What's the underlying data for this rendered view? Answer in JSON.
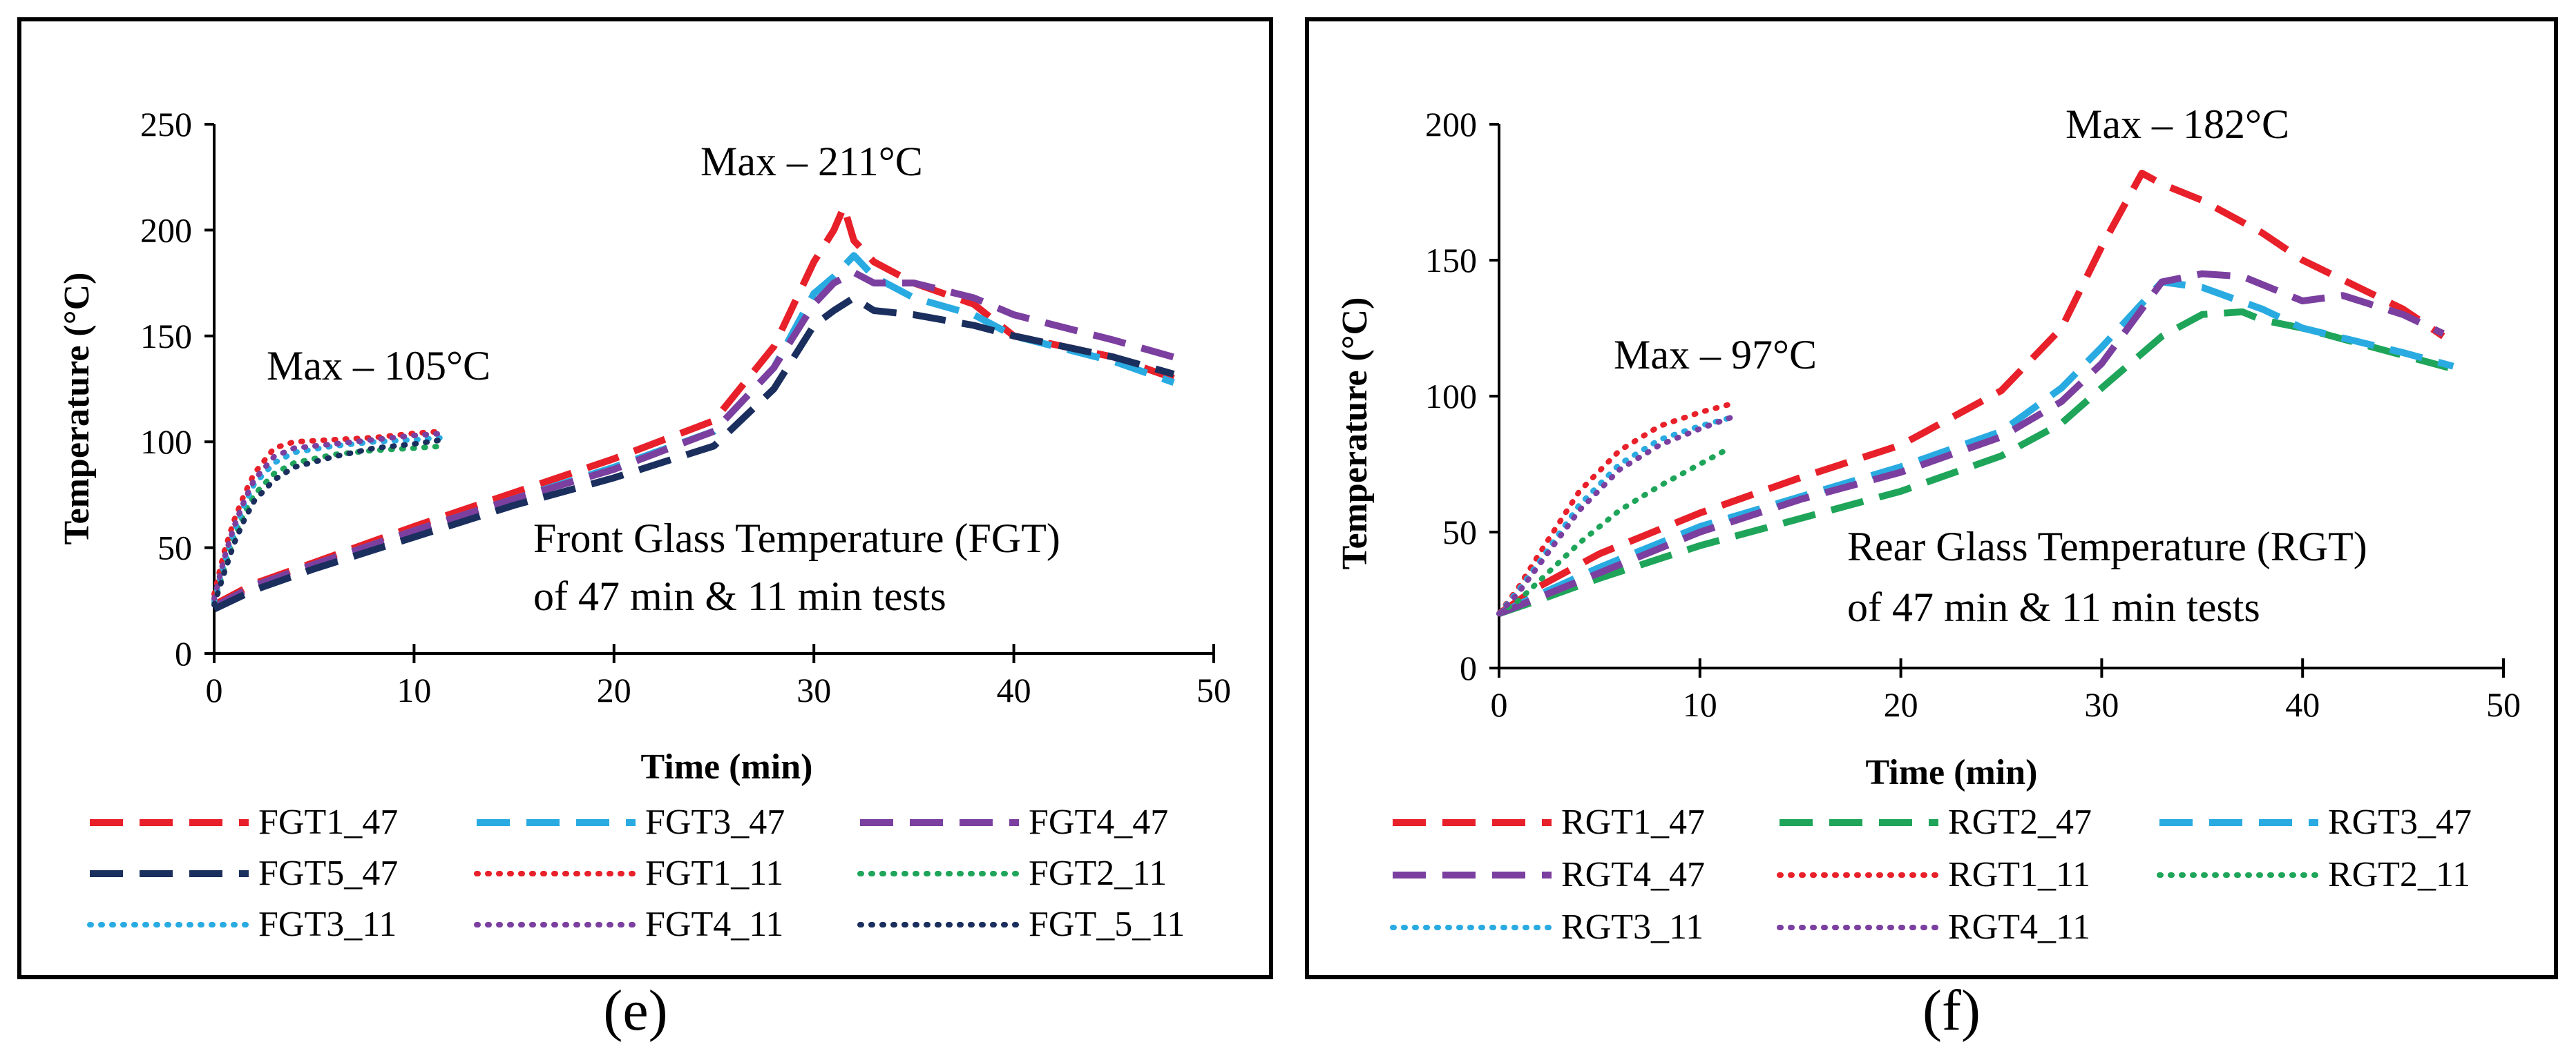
{
  "chart_data": [
    {
      "type": "line",
      "panel_label": "(e)",
      "xlabel": "Time (min)",
      "ylabel": "Temperature (°C)",
      "xlim": [
        0,
        50
      ],
      "ylim": [
        0,
        250
      ],
      "xticks": [
        "0",
        "10",
        "20",
        "30",
        "40",
        "50"
      ],
      "yticks": [
        "0",
        "50",
        "100",
        "150",
        "200",
        "250"
      ],
      "grid": false,
      "legend_position": "bottom",
      "annotations": [
        {
          "text": "Max – 211°C",
          "at": [
            31.5,
            211
          ]
        },
        {
          "text": "Max – 105°C",
          "at": [
            10,
            140
          ]
        },
        {
          "text": "Front Glass Temperature (FGT)",
          "at": [
            16,
            55
          ]
        },
        {
          "text": "of 47 min & 11 min tests",
          "at": [
            16,
            27
          ]
        }
      ],
      "series": [
        {
          "name": "FGT1_47",
          "color": "#e8202a",
          "style": "dashed",
          "x": [
            0,
            2,
            5,
            10,
            15,
            20,
            25,
            28,
            30,
            31,
            31.5,
            32,
            33,
            35,
            38,
            40,
            45,
            48
          ],
          "y": [
            23,
            33,
            43,
            60,
            76,
            92,
            110,
            145,
            185,
            200,
            211,
            195,
            185,
            175,
            165,
            150,
            140,
            130
          ]
        },
        {
          "name": "FGT3_47",
          "color": "#29abe2",
          "style": "dashed",
          "x": [
            0,
            2,
            5,
            10,
            15,
            20,
            25,
            28,
            30,
            31,
            32,
            33,
            35,
            38,
            40,
            45,
            48
          ],
          "y": [
            22,
            32,
            42,
            58,
            73,
            88,
            105,
            135,
            170,
            178,
            188,
            178,
            168,
            160,
            150,
            138,
            128
          ]
        },
        {
          "name": "FGT4_47",
          "color": "#7b3fa0",
          "style": "dashed",
          "x": [
            0,
            2,
            5,
            10,
            15,
            20,
            25,
            28,
            30,
            31,
            32,
            33,
            35,
            38,
            40,
            45,
            48
          ],
          "y": [
            22,
            32,
            42,
            58,
            73,
            87,
            105,
            135,
            165,
            175,
            180,
            175,
            175,
            168,
            160,
            148,
            140
          ]
        },
        {
          "name": "FGT5_47",
          "color": "#1b2f5e",
          "style": "dashed",
          "x": [
            0,
            2,
            5,
            10,
            15,
            20,
            25,
            28,
            30,
            31,
            32,
            33,
            35,
            38,
            40,
            45,
            48
          ],
          "y": [
            21,
            30,
            40,
            55,
            70,
            83,
            98,
            125,
            155,
            162,
            168,
            162,
            160,
            155,
            150,
            140,
            132
          ]
        },
        {
          "name": "FGT1_11",
          "color": "#e8202a",
          "style": "dotted",
          "x": [
            0,
            0.5,
            1,
            1.5,
            2,
            3,
            4,
            6,
            8,
            10,
            11.5
          ],
          "y": [
            28,
            48,
            63,
            75,
            85,
            97,
            100,
            101,
            102,
            104,
            105
          ]
        },
        {
          "name": "FGT2_11",
          "color": "#1fa55a",
          "style": "dotted",
          "x": [
            0,
            0.5,
            1,
            1.5,
            2,
            3,
            4,
            6,
            8,
            10,
            11.5
          ],
          "y": [
            24,
            40,
            55,
            66,
            75,
            85,
            90,
            94,
            96,
            97,
            98
          ]
        },
        {
          "name": "FGT3_11",
          "color": "#29abe2",
          "style": "dotted",
          "x": [
            0,
            0.5,
            1,
            1.5,
            2,
            3,
            4,
            6,
            8,
            10,
            11.5
          ],
          "y": [
            25,
            43,
            58,
            70,
            80,
            90,
            95,
            98,
            100,
            101,
            102
          ]
        },
        {
          "name": "FGT4_11",
          "color": "#7b3fa0",
          "style": "dotted",
          "x": [
            0,
            0.5,
            1,
            1.5,
            2,
            3,
            4,
            6,
            8,
            10,
            11.5
          ],
          "y": [
            26,
            45,
            60,
            72,
            82,
            93,
            97,
            99,
            101,
            103,
            104
          ]
        },
        {
          "name": "FGT_5_11",
          "color": "#1b2f5e",
          "style": "dotted",
          "x": [
            0,
            0.5,
            1,
            1.5,
            2,
            3,
            4,
            6,
            8,
            10,
            11.5
          ],
          "y": [
            23,
            38,
            52,
            63,
            72,
            82,
            88,
            93,
            97,
            99,
            101
          ]
        }
      ]
    },
    {
      "type": "line",
      "panel_label": "(f)",
      "xlabel": "Time (min)",
      "ylabel": "Temperature (°C)",
      "xlim": [
        0,
        50
      ],
      "ylim": [
        0,
        200
      ],
      "xticks": [
        "0",
        "10",
        "20",
        "30",
        "40",
        "50"
      ],
      "yticks": [
        "0",
        "50",
        "100",
        "150",
        "200"
      ],
      "grid": false,
      "legend_position": "bottom",
      "annotations": [
        {
          "text": "Max – 182°C",
          "at": [
            28,
            196
          ]
        },
        {
          "text": "Max – 97°C",
          "at": [
            6,
            111
          ]
        },
        {
          "text": "Rear Glass Temperature (RGT)",
          "at": [
            17.5,
            40
          ]
        },
        {
          "text": "of 47 min & 11 min tests",
          "at": [
            17.5,
            19
          ]
        }
      ],
      "series": [
        {
          "name": "RGT1_47",
          "color": "#e8202a",
          "style": "dashed",
          "x": [
            0,
            2,
            5,
            10,
            15,
            20,
            25,
            28,
            30,
            32,
            33,
            35,
            38,
            40,
            45,
            47
          ],
          "y": [
            20,
            30,
            42,
            57,
            70,
            82,
            102,
            125,
            155,
            182,
            178,
            172,
            160,
            150,
            132,
            122
          ]
        },
        {
          "name": "RGT2_47",
          "color": "#1fa55a",
          "style": "dashed",
          "x": [
            0,
            2,
            5,
            10,
            15,
            20,
            25,
            28,
            30,
            33,
            35,
            37,
            38,
            40,
            45,
            47.5
          ],
          "y": [
            20,
            25,
            33,
            45,
            55,
            65,
            78,
            90,
            103,
            122,
            130,
            131,
            128,
            125,
            115,
            110
          ]
        },
        {
          "name": "RGT3_47",
          "color": "#29abe2",
          "style": "dashed",
          "x": [
            0,
            2,
            5,
            10,
            15,
            20,
            25,
            28,
            30,
            33,
            34,
            35,
            38,
            40,
            45,
            47.5
          ],
          "y": [
            20,
            27,
            37,
            52,
            63,
            74,
            87,
            103,
            118,
            142,
            141,
            140,
            132,
            125,
            116,
            111
          ]
        },
        {
          "name": "RGT4_47",
          "color": "#7b3fa0",
          "style": "dashed",
          "x": [
            0,
            2,
            5,
            10,
            15,
            20,
            25,
            28,
            30,
            33,
            35,
            37,
            40,
            42,
            45,
            47
          ],
          "y": [
            20,
            26,
            35,
            50,
            62,
            72,
            85,
            98,
            112,
            142,
            145,
            144,
            135,
            137,
            130,
            123
          ]
        },
        {
          "name": "RGT1_11",
          "color": "#e8202a",
          "style": "dotted",
          "x": [
            0,
            1,
            2,
            4,
            6,
            8,
            10,
            11.5
          ],
          "y": [
            20,
            30,
            42,
            65,
            80,
            89,
            94,
            97
          ]
        },
        {
          "name": "RGT2_11",
          "color": "#1fa55a",
          "style": "dotted",
          "x": [
            0,
            1,
            2,
            4,
            6,
            8,
            10,
            11.5
          ],
          "y": [
            20,
            25,
            32,
            46,
            58,
            67,
            75,
            81
          ]
        },
        {
          "name": "RGT3_11",
          "color": "#29abe2",
          "style": "dotted",
          "x": [
            0,
            1,
            2,
            4,
            6,
            8,
            10,
            11.5
          ],
          "y": [
            20,
            29,
            39,
            60,
            75,
            84,
            89,
            92
          ]
        },
        {
          "name": "RGT4_11",
          "color": "#7b3fa0",
          "style": "dotted",
          "x": [
            0,
            1,
            2,
            4,
            6,
            8,
            10,
            11.5
          ],
          "y": [
            20,
            28,
            38,
            58,
            73,
            82,
            88,
            92
          ]
        }
      ]
    }
  ]
}
